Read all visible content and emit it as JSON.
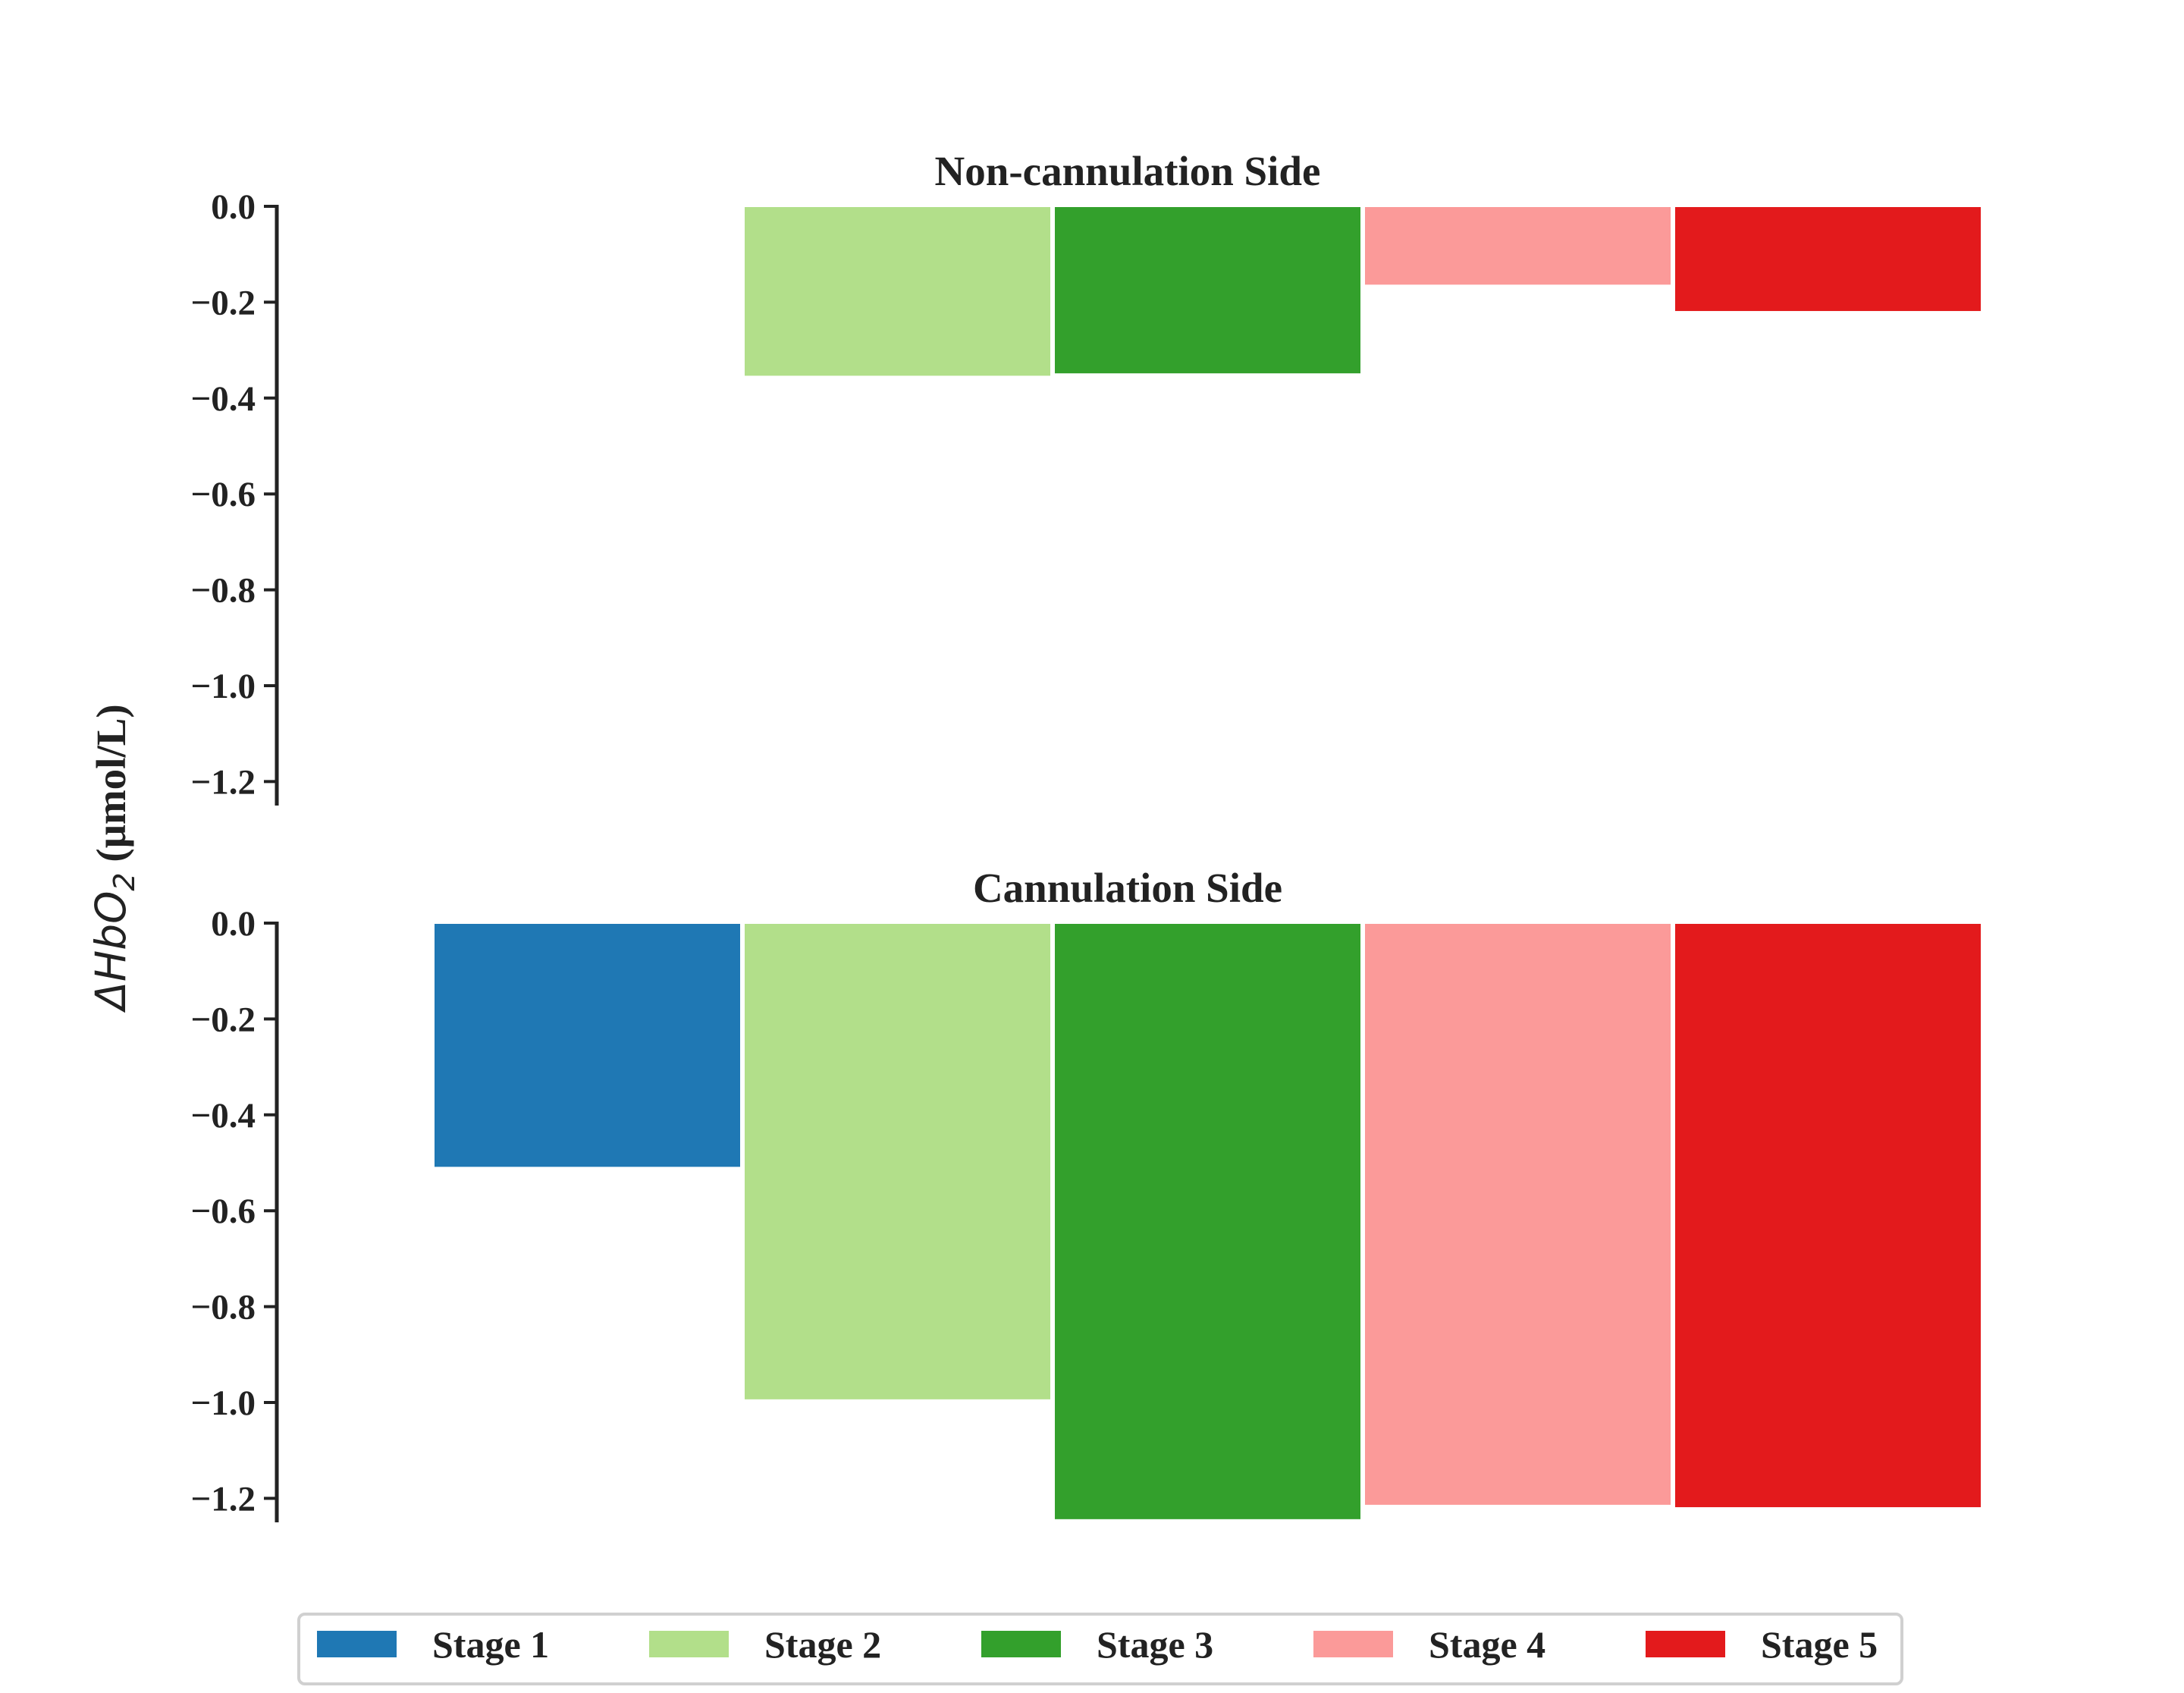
{
  "chart_data": {
    "type": "bar",
    "ylabel": "ΔHbO2 (μmol/L)",
    "ylabel_parts": {
      "delta": "Δ",
      "hb": "HbO",
      "sub": "2",
      "units": " (μmol/L)"
    },
    "yticks": [
      0.0,
      -0.2,
      -0.4,
      -0.6,
      -0.8,
      -1.0,
      -1.2
    ],
    "ytick_labels": [
      "0.0",
      "−0.2",
      "−0.4",
      "−0.6",
      "−0.8",
      "−1.0",
      "−1.2"
    ],
    "ylim": [
      -1.25,
      0.0
    ],
    "grid": false,
    "legend_position": "bottom-center",
    "series": [
      {
        "name": "Stage 1",
        "color": "#1f78b4"
      },
      {
        "name": "Stage 2",
        "color": "#b2df8a"
      },
      {
        "name": "Stage 3",
        "color": "#33a02c"
      },
      {
        "name": "Stage 4",
        "color": "#fb9a99"
      },
      {
        "name": "Stage 5",
        "color": "#e31a1c"
      }
    ],
    "panels": [
      {
        "title": "Non-cannulation Side",
        "values": [
          0.0,
          -0.355,
          -0.35,
          -0.165,
          -0.22
        ]
      },
      {
        "title": "Cannulation Side",
        "values": [
          -0.51,
          -0.995,
          -1.245,
          -1.215,
          -1.22
        ]
      }
    ]
  }
}
